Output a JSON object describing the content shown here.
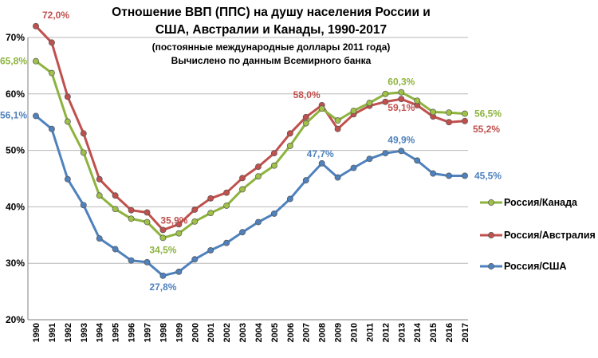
{
  "chart_data": {
    "type": "line",
    "title_lines": [
      "Отношение ВВП (ППС) на душу населения России и",
      "США, Австралии и Канады, 1990-2017"
    ],
    "subtitle_lines": [
      "(постоянные международные доллары 2011 года)",
      "Вычислено по данным Всемирного банка"
    ],
    "x": [
      "1990",
      "1991",
      "1992",
      "1993",
      "1994",
      "1995",
      "1996",
      "1997",
      "1998",
      "1999",
      "2000",
      "2001",
      "2002",
      "2003",
      "2004",
      "2005",
      "2006",
      "2007",
      "2008",
      "2009",
      "2010",
      "2011",
      "2012",
      "2013",
      "2014",
      "2015",
      "2016",
      "2017"
    ],
    "ylim": [
      20,
      70
    ],
    "yticks": [
      20,
      30,
      40,
      50,
      60,
      70
    ],
    "ytick_labels": [
      "20%",
      "30%",
      "40%",
      "50%",
      "60%",
      "70%"
    ],
    "grid": true,
    "legend_position": "right",
    "series": [
      {
        "name": "Россия/Канада",
        "color": "#8db33e",
        "marker_color": "#9fc147",
        "values": [
          65.8,
          63.7,
          55.1,
          49.6,
          42.0,
          39.6,
          37.9,
          37.3,
          34.5,
          35.3,
          37.4,
          38.9,
          40.2,
          43.1,
          45.4,
          47.3,
          50.8,
          54.8,
          57.4,
          55.3,
          57.0,
          58.4,
          60.0,
          60.3,
          58.8,
          56.8,
          56.7,
          56.5
        ],
        "labels": [
          {
            "index": 0,
            "text": "65,8%"
          },
          {
            "index": 8,
            "text": "34,5%"
          },
          {
            "index": 23,
            "text": "60,3%"
          },
          {
            "index": 27,
            "text": "56,5%"
          }
        ]
      },
      {
        "name": "Россия/Австралия",
        "color": "#c0504d",
        "marker_color": "#c0504d",
        "values": [
          72.0,
          69.1,
          59.5,
          53.0,
          44.9,
          42.0,
          39.4,
          39.0,
          35.9,
          36.9,
          39.5,
          41.5,
          42.5,
          45.1,
          47.1,
          49.5,
          53.0,
          55.9,
          58.0,
          53.8,
          56.4,
          57.9,
          58.6,
          59.1,
          58.0,
          56.0,
          55.0,
          55.2
        ],
        "labels": [
          {
            "index": 0,
            "text": "72,0%"
          },
          {
            "index": 8,
            "text": "35,9%"
          },
          {
            "index": 18,
            "text": "58,0%"
          },
          {
            "index": 23,
            "text": "59,1%"
          },
          {
            "index": 27,
            "text": "55,2%"
          }
        ]
      },
      {
        "name": "Россия/США",
        "color": "#4f81bd",
        "marker_color": "#4f81bd",
        "values": [
          56.1,
          53.8,
          44.9,
          40.3,
          34.4,
          32.5,
          30.5,
          30.2,
          27.8,
          28.5,
          30.7,
          32.3,
          33.6,
          35.5,
          37.3,
          38.8,
          41.4,
          44.7,
          47.7,
          45.2,
          46.9,
          48.5,
          49.5,
          49.9,
          48.2,
          45.9,
          45.5,
          45.5
        ],
        "labels": [
          {
            "index": 0,
            "text": "56,1%"
          },
          {
            "index": 8,
            "text": "27,8%"
          },
          {
            "index": 18,
            "text": "47,7%"
          },
          {
            "index": 23,
            "text": "49,9%"
          },
          {
            "index": 27,
            "text": "45,5%"
          }
        ]
      }
    ]
  }
}
